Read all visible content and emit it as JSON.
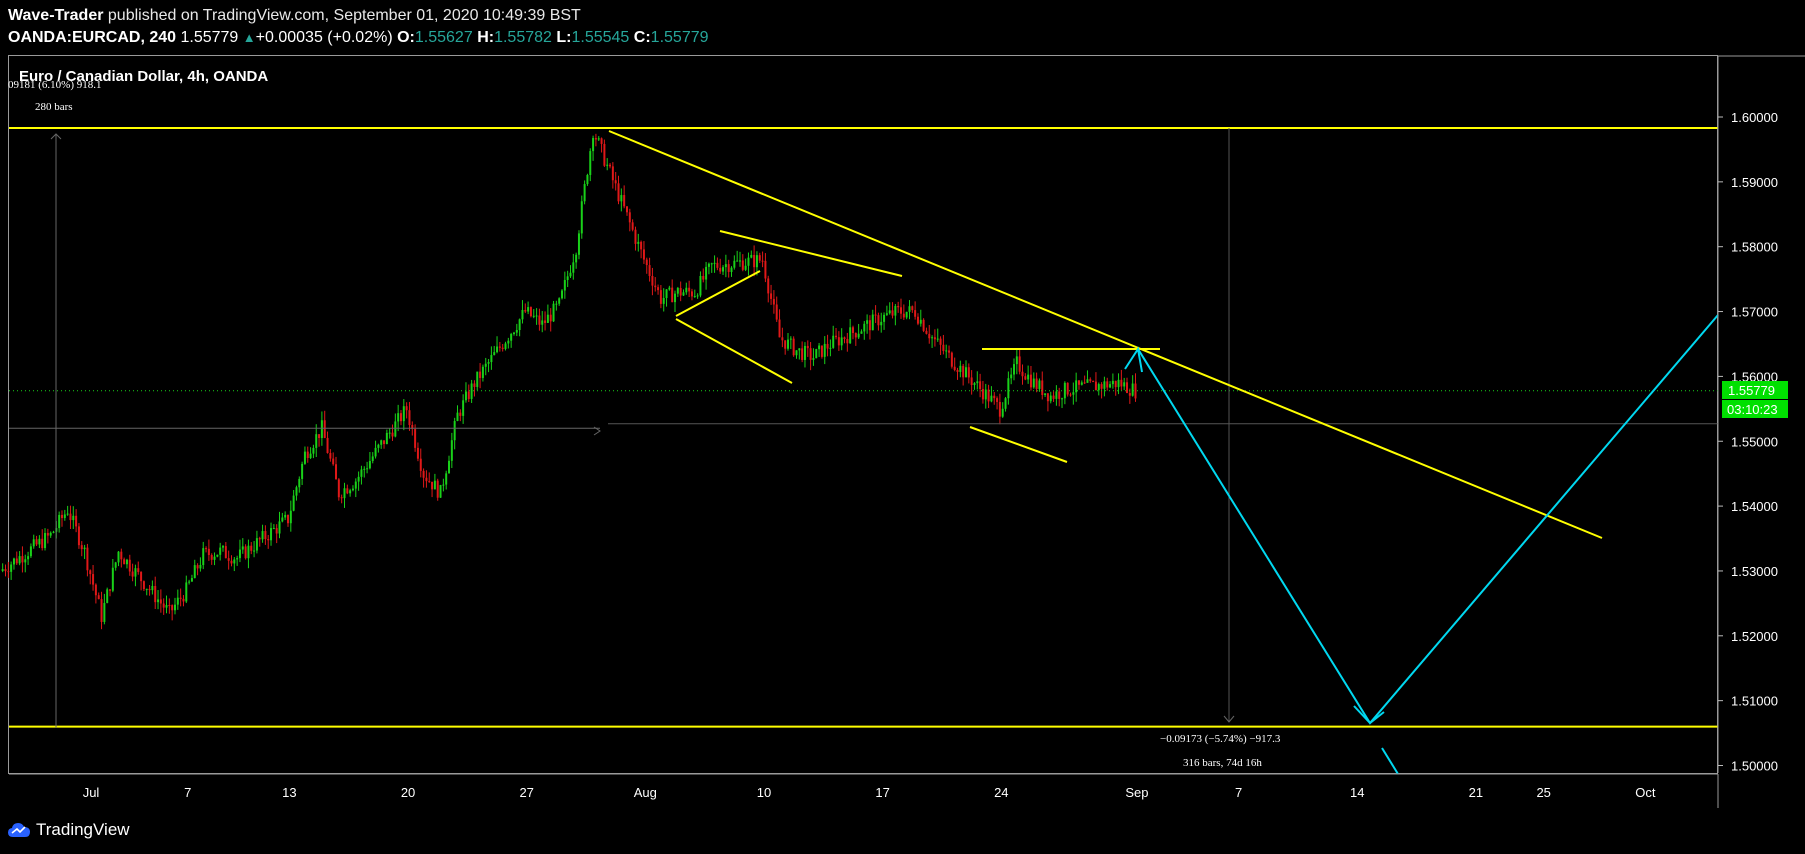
{
  "header": {
    "publisher": "Wave-Trader",
    "published_text": " published on TradingView.com, September 01, 2020 10:49:39 BST",
    "symbol": "OANDA:EURCAD, 240",
    "last": "1.55779",
    "change": "+0.00035 (+0.02%)",
    "o_label": "O:",
    "o_value": "1.55627",
    "h_label": "H:",
    "h_value": "1.55782",
    "l_label": "L:",
    "l_value": "1.55545",
    "c_label": "C:",
    "c_value": "1.55779"
  },
  "chart_data": {
    "type": "candlestick",
    "title": "Euro / Canadian Dollar, 4h, OANDA",
    "x_tick_labels": [
      "Jul",
      "7",
      "13",
      "20",
      "27",
      "Aug",
      "10",
      "17",
      "24",
      "Sep",
      "7",
      "14",
      "21",
      "25",
      "Oct"
    ],
    "y_tick_labels": [
      "1.60000",
      "1.59000",
      "1.58000",
      "1.57000",
      "1.56000",
      "1.55000",
      "1.54000",
      "1.53000",
      "1.52000",
      "1.51000",
      "1.50000"
    ],
    "ylim": [
      1.4975,
      1.6075
    ],
    "last_price_label": "1.55779",
    "countdown_label": "03:10:23",
    "close_path": [
      {
        "x": "Jun 26",
        "y": 1.53
      },
      {
        "x": "Jun 29",
        "y": 1.5355
      },
      {
        "x": "Jun 30",
        "y": 1.5395
      },
      {
        "x": "Jul 1",
        "y": 1.533
      },
      {
        "x": "Jul 2",
        "y": 1.523
      },
      {
        "x": "Jul 3",
        "y": 1.533
      },
      {
        "x": "Jul 6",
        "y": 1.5235
      },
      {
        "x": "Jul 7",
        "y": 1.527
      },
      {
        "x": "Jul 8",
        "y": 1.5325
      },
      {
        "x": "Jul 9",
        "y": 1.533
      },
      {
        "x": "Jul 10",
        "y": 1.532
      },
      {
        "x": "Jul 13",
        "y": 1.538
      },
      {
        "x": "Jul 14",
        "y": 1.548
      },
      {
        "x": "Jul 15",
        "y": 1.552
      },
      {
        "x": "Jul 16",
        "y": 1.542
      },
      {
        "x": "Jul 17",
        "y": 1.544
      },
      {
        "x": "Jul 20",
        "y": 1.555
      },
      {
        "x": "Jul 21",
        "y": 1.545
      },
      {
        "x": "Jul 22",
        "y": 1.542
      },
      {
        "x": "Jul 23",
        "y": 1.554
      },
      {
        "x": "Jul 24",
        "y": 1.559
      },
      {
        "x": "Jul 27",
        "y": 1.57
      },
      {
        "x": "Jul 28",
        "y": 1.568
      },
      {
        "x": "Jul 29",
        "y": 1.571
      },
      {
        "x": "Jul 30",
        "y": 1.58
      },
      {
        "x": "Jul 31",
        "y": 1.598
      },
      {
        "x": "Aug 3",
        "y": 1.578
      },
      {
        "x": "Aug 4",
        "y": 1.572
      },
      {
        "x": "Aug 5",
        "y": 1.573
      },
      {
        "x": "Aug 6",
        "y": 1.573
      },
      {
        "x": "Aug 7",
        "y": 1.577
      },
      {
        "x": "Aug 10",
        "y": 1.578
      },
      {
        "x": "Aug 11",
        "y": 1.566
      },
      {
        "x": "Aug 12",
        "y": 1.564
      },
      {
        "x": "Aug 13",
        "y": 1.563
      },
      {
        "x": "Aug 14",
        "y": 1.565
      },
      {
        "x": "Aug 17",
        "y": 1.569
      },
      {
        "x": "Aug 18",
        "y": 1.57
      },
      {
        "x": "Aug 19",
        "y": 1.57
      },
      {
        "x": "Aug 20",
        "y": 1.566
      },
      {
        "x": "Aug 21",
        "y": 1.563
      },
      {
        "x": "Aug 24",
        "y": 1.555
      },
      {
        "x": "Aug 25",
        "y": 1.562
      },
      {
        "x": "Aug 26",
        "y": 1.559
      },
      {
        "x": "Aug 27",
        "y": 1.557
      },
      {
        "x": "Aug 28",
        "y": 1.558
      },
      {
        "x": "Aug 31",
        "y": 1.559
      },
      {
        "x": "Sep 1",
        "y": 1.5578
      }
    ],
    "horizontal_levels": [
      1.5983,
      1.506
    ],
    "annotations": {
      "top_left_measure": "09181 (6.10%) 918.1",
      "top_left_bars": "280 bars",
      "bottom_measure": "−0.09173 (−5.74%) −917.3",
      "bottom_bars": "316 bars, 74d 16h"
    },
    "colors": {
      "up": "#19d119",
      "down": "#e01818",
      "trendline": "#ffff00",
      "projection": "#00d8f0",
      "price_tag": "#00e000"
    }
  },
  "footer": {
    "brand": "TradingView"
  }
}
